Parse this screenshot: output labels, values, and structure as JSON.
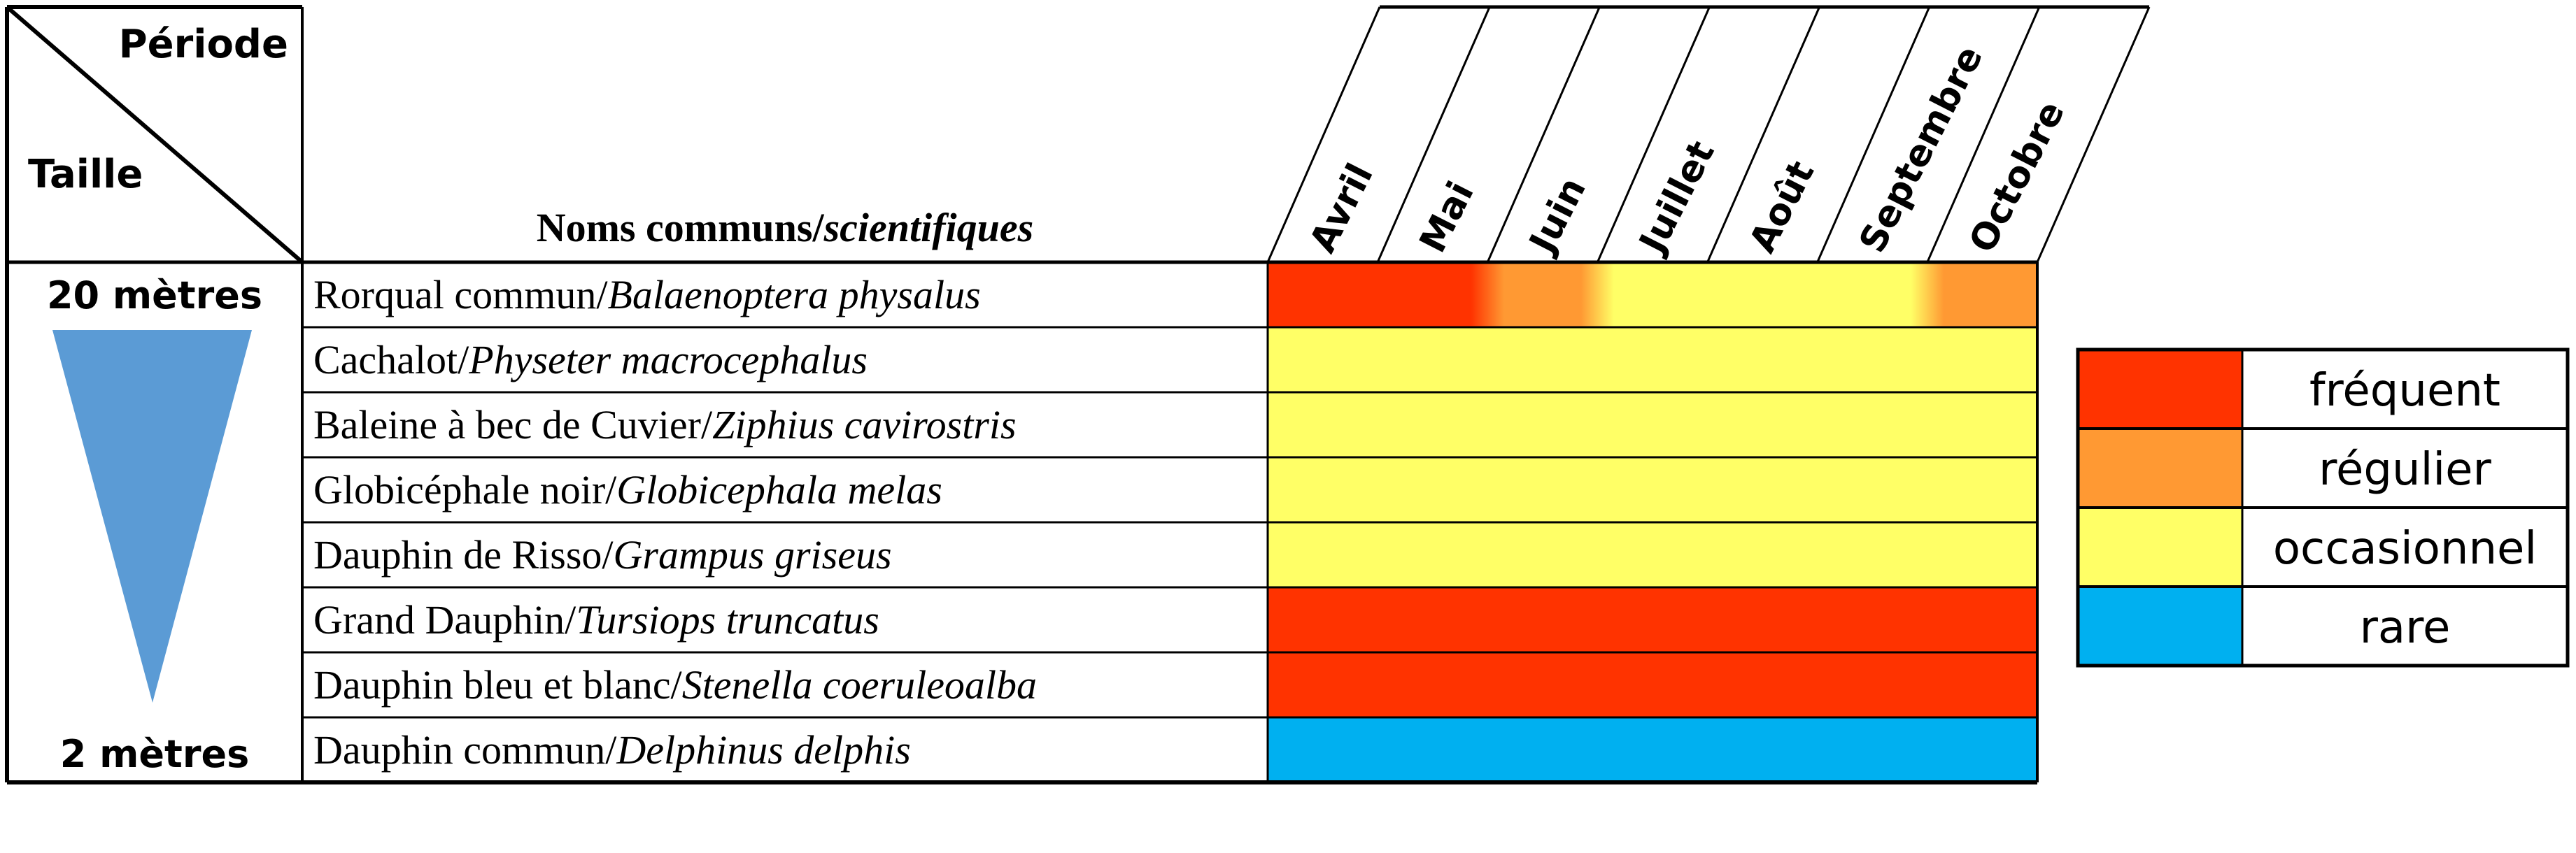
{
  "chart_data": {
    "type": "table",
    "header": {
      "period_label": "Période",
      "size_label": "Taille",
      "names_label_common": "Noms communs/",
      "names_label_scientific": "scientifiques"
    },
    "months": [
      "Avril",
      "Mai",
      "Juin",
      "Juillet",
      "Août",
      "Septembre",
      "Octobre"
    ],
    "size_scale": {
      "top": "20 mètres",
      "bottom": "2 mètres"
    },
    "species": [
      {
        "common": "Rorqual commun/",
        "scientific": "Balaenoptera physalus",
        "frequency": [
          "fréquent",
          "fréquent",
          "régulier",
          "occasionnel",
          "occasionnel",
          "occasionnel",
          "régulier"
        ]
      },
      {
        "common": "Cachalot/",
        "scientific": "Physeter macrocephalus",
        "frequency": [
          "occasionnel",
          "occasionnel",
          "occasionnel",
          "occasionnel",
          "occasionnel",
          "occasionnel",
          "occasionnel"
        ]
      },
      {
        "common": "Baleine à bec de Cuvier/",
        "scientific": "Ziphius cavirostris",
        "frequency": [
          "occasionnel",
          "occasionnel",
          "occasionnel",
          "occasionnel",
          "occasionnel",
          "occasionnel",
          "occasionnel"
        ]
      },
      {
        "common": "Globicéphale noir/",
        "scientific": "Globicephala melas",
        "frequency": [
          "occasionnel",
          "occasionnel",
          "occasionnel",
          "occasionnel",
          "occasionnel",
          "occasionnel",
          "occasionnel"
        ]
      },
      {
        "common": "Dauphin de Risso/",
        "scientific": "Grampus griseus",
        "frequency": [
          "occasionnel",
          "occasionnel",
          "occasionnel",
          "occasionnel",
          "occasionnel",
          "occasionnel",
          "occasionnel"
        ]
      },
      {
        "common": "Grand Dauphin/",
        "scientific": "Tursiops truncatus",
        "frequency": [
          "fréquent",
          "fréquent",
          "fréquent",
          "fréquent",
          "fréquent",
          "fréquent",
          "fréquent"
        ]
      },
      {
        "common": "Dauphin bleu et blanc/",
        "scientific": "Stenella coeruleoalba",
        "frequency": [
          "fréquent",
          "fréquent",
          "fréquent",
          "fréquent",
          "fréquent",
          "fréquent",
          "fréquent"
        ]
      },
      {
        "common": "Dauphin commun/",
        "scientific": "Delphinus delphis",
        "frequency": [
          "rare",
          "rare",
          "rare",
          "rare",
          "rare",
          "rare",
          "rare"
        ]
      }
    ],
    "legend": [
      {
        "label": "fréquent",
        "color": "#FF3300"
      },
      {
        "label": "régulier",
        "color": "#FF9933"
      },
      {
        "label": "occasionnel",
        "color": "#FFFF66"
      },
      {
        "label": "rare",
        "color": "#00B0F0"
      }
    ],
    "size_triangle_color": "#5B9BD5"
  }
}
